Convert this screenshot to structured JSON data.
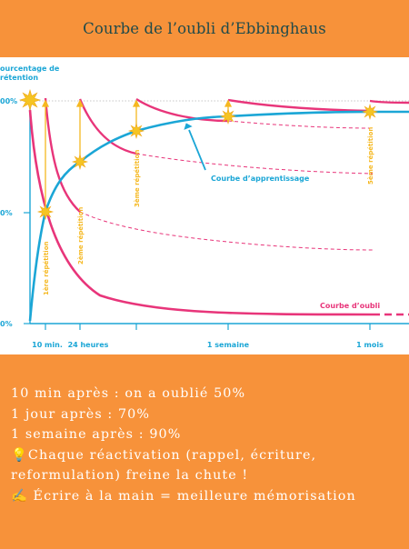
{
  "title": "Courbe de l’oubli d’Ebbinghaus",
  "chart_data": {
    "type": "line",
    "ylabel": "ourcentage de\nrétention",
    "y_ticks": [
      "00%",
      "0%",
      "0%"
    ],
    "x_ticks": [
      "10 min.",
      "24 heures",
      "1 semaine",
      "1 mois"
    ],
    "series": [
      {
        "name": "Courbe d’apprentissage",
        "color": "#1BA6D6"
      },
      {
        "name": "Courbe d’oubli",
        "color": "#E8357A"
      }
    ],
    "repetitions": [
      "1ère répétition",
      "2ème répétition",
      "3ème répétition",
      "5ème répétition"
    ]
  },
  "notes": [
    "10 min après : on a oublié 50%",
    "1 jour après : 70%",
    "1 semaine après : 90%",
    "💡Chaque réactivation (rappel, écriture, reformulation) freine la chute !",
    "✍️ Écrire à la main = meilleure mémorisation"
  ]
}
